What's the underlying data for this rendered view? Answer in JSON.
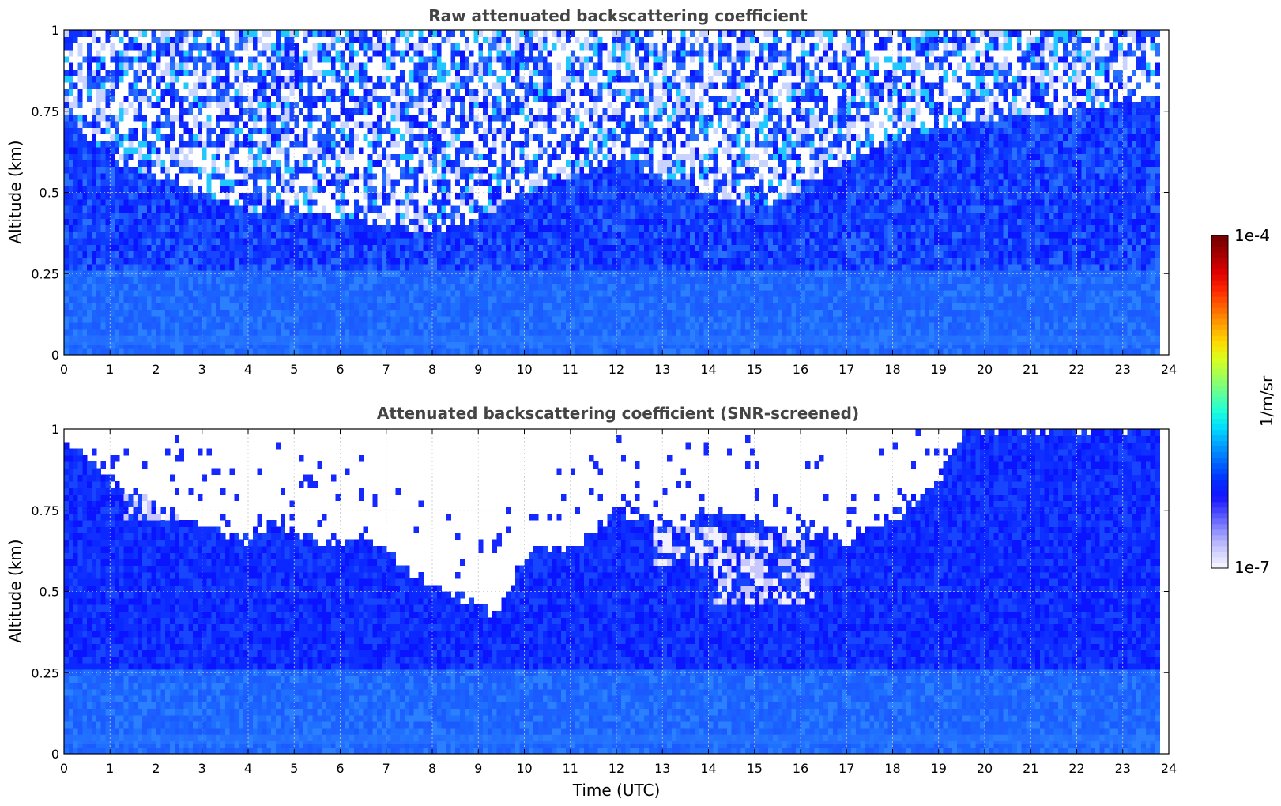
{
  "chart_data": [
    {
      "type": "heatmap",
      "title": "Raw attenuated backscattering coefficient",
      "xlabel": "",
      "ylabel": "Altitude (km)",
      "xlim": [
        0,
        24
      ],
      "ylim": [
        0,
        1
      ],
      "x_ticks": [
        "0",
        "1",
        "2",
        "3",
        "4",
        "5",
        "6",
        "7",
        "8",
        "9",
        "10",
        "11",
        "12",
        "13",
        "14",
        "15",
        "16",
        "17",
        "18",
        "19",
        "20",
        "21",
        "22",
        "23",
        "24"
      ],
      "y_ticks": [
        "0",
        "0.25",
        "0.5",
        "0.75",
        "1"
      ],
      "data_time_end": 23.8,
      "grid": true,
      "colorscale": "log",
      "screened": false,
      "noise_onset_altitude_km": [
        [
          0,
          0.75
        ],
        [
          1,
          0.6
        ],
        [
          2,
          0.55
        ],
        [
          3,
          0.5
        ],
        [
          4,
          0.45
        ],
        [
          5,
          0.45
        ],
        [
          6,
          0.42
        ],
        [
          7,
          0.4
        ],
        [
          8,
          0.38
        ],
        [
          9,
          0.42
        ],
        [
          10,
          0.5
        ],
        [
          11,
          0.55
        ],
        [
          12,
          0.6
        ],
        [
          13,
          0.55
        ],
        [
          14,
          0.5
        ],
        [
          15,
          0.45
        ],
        [
          16,
          0.5
        ],
        [
          17,
          0.6
        ],
        [
          18,
          0.65
        ],
        [
          19,
          0.7
        ],
        [
          20,
          0.72
        ],
        [
          21,
          0.75
        ],
        [
          22,
          0.75
        ],
        [
          23,
          0.78
        ],
        [
          23.8,
          0.8
        ]
      ]
    },
    {
      "type": "heatmap",
      "title": "Attenuated backscattering coefficient (SNR-screened)",
      "xlabel": "Time (UTC)",
      "ylabel": "Altitude (km)",
      "xlim": [
        0,
        24
      ],
      "ylim": [
        0,
        1
      ],
      "x_ticks": [
        "0",
        "1",
        "2",
        "3",
        "4",
        "5",
        "6",
        "7",
        "8",
        "9",
        "10",
        "11",
        "12",
        "13",
        "14",
        "15",
        "16",
        "17",
        "18",
        "19",
        "20",
        "21",
        "22",
        "23",
        "24"
      ],
      "y_ticks": [
        "0",
        "0.25",
        "0.5",
        "0.75",
        "1"
      ],
      "data_time_end": 23.8,
      "grid": true,
      "colorscale": "log",
      "screened": true,
      "signal_top_altitude_km": [
        [
          0,
          0.95
        ],
        [
          0.5,
          0.92
        ],
        [
          1,
          0.85
        ],
        [
          1.5,
          0.8
        ],
        [
          2,
          0.76
        ],
        [
          2.5,
          0.72
        ],
        [
          3,
          0.7
        ],
        [
          3.5,
          0.67
        ],
        [
          4,
          0.66
        ],
        [
          4.5,
          0.72
        ],
        [
          5,
          0.68
        ],
        [
          5.5,
          0.66
        ],
        [
          6,
          0.64
        ],
        [
          6.5,
          0.68
        ],
        [
          7,
          0.63
        ],
        [
          7.5,
          0.56
        ],
        [
          8,
          0.52
        ],
        [
          8.5,
          0.48
        ],
        [
          9,
          0.47
        ],
        [
          9.4,
          0.42
        ],
        [
          9.8,
          0.55
        ],
        [
          10.3,
          0.63
        ],
        [
          11,
          0.63
        ],
        [
          11.5,
          0.68
        ],
        [
          12,
          0.75
        ],
        [
          12.5,
          0.73
        ],
        [
          13,
          0.7
        ],
        [
          13.5,
          0.72
        ],
        [
          14,
          0.75
        ],
        [
          14.5,
          0.73
        ],
        [
          15,
          0.72
        ],
        [
          15.5,
          0.68
        ],
        [
          16,
          0.7
        ],
        [
          16.5,
          0.66
        ],
        [
          17,
          0.65
        ],
        [
          17.5,
          0.7
        ],
        [
          18,
          0.72
        ],
        [
          18.5,
          0.78
        ],
        [
          19,
          0.85
        ],
        [
          19.5,
          0.98
        ],
        [
          20,
          1.0
        ],
        [
          23.8,
          1.0
        ]
      ],
      "enhanced_regions": [
        {
          "t0": 1.3,
          "t1": 2.6,
          "z0": 0.72,
          "z1": 0.83
        },
        {
          "t0": 12.6,
          "t1": 14.2,
          "z0": 0.58,
          "z1": 0.7
        },
        {
          "t0": 14.0,
          "t1": 16.2,
          "z0": 0.47,
          "z1": 0.68
        }
      ]
    }
  ],
  "colorbar": {
    "label": "1/m/sr",
    "max_label": "1e-4",
    "min_label": "1e-7",
    "colors": [
      "#f2f2ff",
      "#c8c8ff",
      "#9090ff",
      "#5050ff",
      "#1414ff",
      "#0030ff",
      "#0066ff",
      "#00a0ff",
      "#00dcff",
      "#20ffd8",
      "#60ff98",
      "#a0ff58",
      "#dcff1c",
      "#ffd800",
      "#ffa000",
      "#ff6400",
      "#ff2800",
      "#e00000",
      "#a80000",
      "#780000"
    ]
  }
}
